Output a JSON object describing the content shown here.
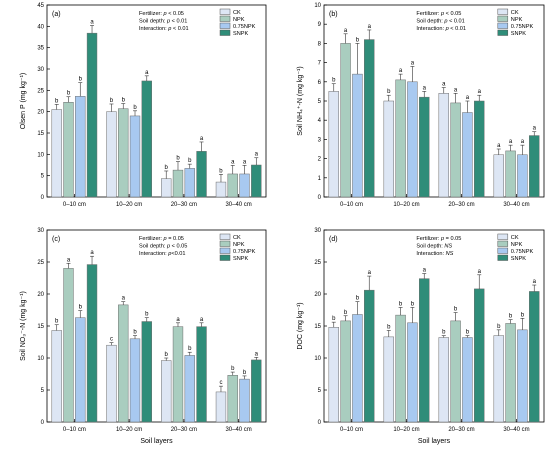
{
  "colors": {
    "CK": "#dde6f4",
    "NPK": "#a9cdbf",
    "0.75NPK": "#a8c9f0",
    "SNPK": "#2f8d79"
  },
  "x_axis_label": "Soil layers",
  "chart_data": [
    {
      "type": "bar",
      "panel_label": "(a)",
      "ylabel": "Olsen P (mg kg⁻¹)",
      "ylim": [
        0,
        45
      ],
      "yticks": [
        0,
        5,
        10,
        15,
        20,
        25,
        30,
        35,
        40,
        45
      ],
      "categories": [
        "0–10 cm",
        "10–20 cm",
        "20–30 cm",
        "30–40 cm"
      ],
      "stats": [
        "Fertilizer: p < 0.05",
        "Soil depth: p < 0.01",
        "Interaction: p < 0.01"
      ],
      "legend": [
        "CK",
        "NPK",
        "0.75NPK",
        "SNPK"
      ],
      "series": [
        {
          "name": "CK",
          "values": [
            20.5,
            20.0,
            4.3,
            3.5
          ],
          "errors": [
            1.2,
            1.8,
            1.8,
            1.8
          ],
          "letters": [
            "b",
            "b",
            "b",
            "b"
          ]
        },
        {
          "name": "NPK",
          "values": [
            22.2,
            20.7,
            6.3,
            5.4
          ],
          "errors": [
            1.3,
            1.2,
            2.0,
            2.0
          ],
          "letters": [
            "b",
            "b",
            "b",
            "a"
          ]
        },
        {
          "name": "0.75NPK",
          "values": [
            23.6,
            19.0,
            6.7,
            5.4
          ],
          "errors": [
            3.2,
            1.2,
            1.0,
            2.0
          ],
          "letters": [
            "b",
            "b",
            "b",
            "a"
          ]
        },
        {
          "name": "SNPK",
          "values": [
            38.4,
            27.2,
            10.7,
            7.5
          ],
          "errors": [
            1.8,
            1.2,
            2.2,
            1.7
          ],
          "letters": [
            "a",
            "a",
            "a",
            "a"
          ]
        }
      ]
    },
    {
      "type": "bar",
      "panel_label": "(b)",
      "ylabel": "Soil NH₄⁺-N (mg kg⁻¹)",
      "ylim": [
        0,
        10
      ],
      "yticks": [
        0,
        1,
        2,
        3,
        4,
        5,
        6,
        7,
        8,
        9,
        10
      ],
      "categories": [
        "0–10 cm",
        "10–20 cm",
        "20–30 cm",
        "30–40 cm"
      ],
      "stats": [
        "Fertilizer: p < 0.05",
        "Soil depth: p < 0.01",
        "Interaction: p < 0.01"
      ],
      "legend": [
        "CK",
        "NPK",
        "0.75NPK",
        "SNPK"
      ],
      "series": [
        {
          "name": "CK",
          "values": [
            5.5,
            5.0,
            5.4,
            2.2
          ],
          "errors": [
            0.4,
            0.3,
            0.3,
            0.3
          ],
          "letters": [
            "b",
            "b",
            "a",
            "a"
          ]
        },
        {
          "name": "NPK",
          "values": [
            8.0,
            6.1,
            4.9,
            2.4
          ],
          "errors": [
            0.5,
            0.3,
            0.5,
            0.3
          ],
          "letters": [
            "a",
            "a",
            "a",
            "a"
          ]
        },
        {
          "name": "0.75NPK",
          "values": [
            6.4,
            6.0,
            4.4,
            2.2
          ],
          "errors": [
            1.6,
            0.8,
            0.6,
            0.5
          ],
          "letters": [
            "b",
            "a",
            "a",
            "a"
          ]
        },
        {
          "name": "SNPK",
          "values": [
            8.2,
            5.2,
            5.0,
            3.2
          ],
          "errors": [
            0.5,
            0.3,
            0.3,
            0.2
          ],
          "letters": [
            "a",
            "a",
            "a",
            "a"
          ]
        }
      ]
    },
    {
      "type": "bar",
      "panel_label": "(c)",
      "ylabel": "Soil NO₃⁻-N (mg kg⁻¹)",
      "ylim": [
        0,
        30
      ],
      "yticks": [
        0,
        5,
        10,
        15,
        20,
        25,
        30
      ],
      "categories": [
        "0–10 cm",
        "10–20 cm",
        "20–30 cm",
        "30–40 cm"
      ],
      "stats": [
        "Fertilizer: p = 0.05",
        "Soil depth: p < 0.05",
        "Interaction: p<0.01"
      ],
      "legend": [
        "CK",
        "NPK",
        "0.75NPK",
        "SNPK"
      ],
      "series": [
        {
          "name": "CK",
          "values": [
            14.3,
            12.0,
            9.6,
            4.7
          ],
          "errors": [
            0.9,
            0.4,
            0.4,
            0.9
          ],
          "letters": [
            "b",
            "c",
            "b",
            "c"
          ]
        },
        {
          "name": "NPK",
          "values": [
            24.0,
            18.3,
            14.9,
            7.3
          ],
          "errors": [
            0.8,
            0.5,
            0.6,
            0.5
          ],
          "letters": [
            "a",
            "a",
            "a",
            "b"
          ]
        },
        {
          "name": "0.75NPK",
          "values": [
            16.3,
            13.0,
            10.4,
            6.7
          ],
          "errors": [
            1.1,
            0.5,
            0.5,
            0.5
          ],
          "letters": [
            "b",
            "b",
            "b",
            "b"
          ]
        },
        {
          "name": "SNPK",
          "values": [
            24.6,
            15.7,
            14.9,
            9.7
          ],
          "errors": [
            1.3,
            0.6,
            0.6,
            0.4
          ],
          "letters": [
            "a",
            "b",
            "a",
            "a"
          ]
        }
      ]
    },
    {
      "type": "bar",
      "panel_label": "(d)",
      "ylabel": "DOC (mg kg⁻¹)",
      "ylim": [
        0,
        30
      ],
      "yticks": [
        0,
        5,
        10,
        15,
        20,
        25,
        30
      ],
      "categories": [
        "0–10 cm",
        "10–20 cm",
        "20–30 cm",
        "30–40 cm"
      ],
      "stats": [
        "Fertilizer: p = 0.05",
        "Soil depth: NS",
        "Interaction: NS"
      ],
      "legend": [
        "CK",
        "NPK",
        "0.75NPK",
        "SNPK"
      ],
      "series": [
        {
          "name": "CK",
          "values": [
            14.8,
            13.3,
            13.2,
            13.5
          ],
          "errors": [
            0.8,
            1.0,
            0.3,
            0.9
          ],
          "letters": [
            "b",
            "b",
            "b",
            "b"
          ]
        },
        {
          "name": "NPK",
          "values": [
            15.8,
            16.7,
            15.8,
            15.4
          ],
          "errors": [
            0.8,
            1.2,
            1.3,
            0.6
          ],
          "letters": [
            "b",
            "b",
            "b",
            "b"
          ]
        },
        {
          "name": "0.75NPK",
          "values": [
            16.8,
            15.5,
            13.2,
            14.4
          ],
          "errors": [
            2.0,
            2.4,
            0.3,
            1.8
          ],
          "letters": [
            "b",
            "b",
            "b",
            "b"
          ]
        },
        {
          "name": "SNPK",
          "values": [
            20.6,
            22.4,
            20.8,
            20.4
          ],
          "errors": [
            2.2,
            0.8,
            2.2,
            1.0
          ],
          "letters": [
            "a",
            "a",
            "a",
            "a"
          ]
        }
      ]
    }
  ]
}
